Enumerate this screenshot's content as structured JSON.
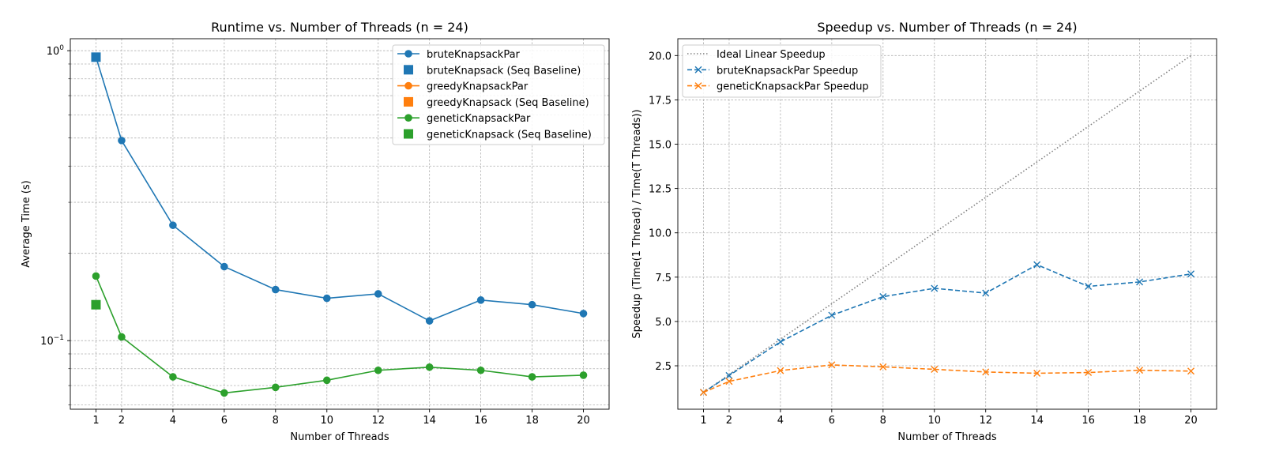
{
  "chart_data": [
    {
      "type": "line",
      "title": "Runtime vs. Number of Threads (n = 24)",
      "xlabel": "Number of Threads",
      "ylabel": "Average Time (s)",
      "yscale": "log",
      "ylim": [
        0.058,
        1.1
      ],
      "xlim": [
        0,
        21
      ],
      "xticks": [
        1,
        2,
        4,
        6,
        8,
        10,
        12,
        14,
        16,
        18,
        20
      ],
      "yticks": [
        {
          "value": 1.0,
          "base": "10",
          "exp": "0"
        },
        {
          "value": 0.1,
          "base": "10",
          "exp": "−1"
        }
      ],
      "grid": true,
      "legend_position": "upper right",
      "series": [
        {
          "name": "bruteKnapsackPar",
          "color": "#1f77b4",
          "marker": "circle",
          "x": [
            1,
            2,
            4,
            6,
            8,
            10,
            12,
            14,
            16,
            18,
            20
          ],
          "values": [
            0.95,
            0.49,
            0.25,
            0.18,
            0.15,
            0.14,
            0.145,
            0.117,
            0.138,
            0.133,
            0.124
          ]
        },
        {
          "name": "bruteKnapsack (Seq Baseline)",
          "color": "#1f77b4",
          "marker": "square",
          "x": [
            1
          ],
          "values": [
            0.95
          ]
        },
        {
          "name": "greedyKnapsackPar",
          "color": "#ff7f0e",
          "marker": "circle",
          "x": [],
          "values": []
        },
        {
          "name": "greedyKnapsack (Seq Baseline)",
          "color": "#ff7f0e",
          "marker": "square",
          "x": [],
          "values": []
        },
        {
          "name": "geneticKnapsackPar",
          "color": "#2ca02c",
          "marker": "circle",
          "x": [
            1,
            2,
            4,
            6,
            8,
            10,
            12,
            14,
            16,
            18,
            20
          ],
          "values": [
            0.167,
            0.103,
            0.075,
            0.066,
            0.069,
            0.073,
            0.079,
            0.081,
            0.079,
            0.075,
            0.076
          ]
        },
        {
          "name": "geneticKnapsack (Seq Baseline)",
          "color": "#2ca02c",
          "marker": "square",
          "x": [
            1
          ],
          "values": [
            0.133
          ]
        }
      ]
    },
    {
      "type": "line",
      "title": "Speedup vs. Number of Threads (n = 24)",
      "xlabel": "Number of Threads",
      "ylabel": "Speedup (Time(1 Thread) / Time(T Threads))",
      "yscale": "linear",
      "ylim": [
        0.05,
        20.95
      ],
      "xlim": [
        0,
        21
      ],
      "xticks": [
        1,
        2,
        4,
        6,
        8,
        10,
        12,
        14,
        16,
        18,
        20
      ],
      "yticks": [
        "2.5",
        "5.0",
        "7.5",
        "10.0",
        "12.5",
        "15.0",
        "17.5",
        "20.0"
      ],
      "grid": true,
      "legend_position": "upper left",
      "series": [
        {
          "name": "Ideal Linear Speedup",
          "color": "#808080",
          "style": "dotted",
          "marker": "none",
          "x": [
            1,
            20
          ],
          "values": [
            1,
            20
          ]
        },
        {
          "name": "bruteKnapsackPar Speedup",
          "color": "#1f77b4",
          "style": "dashed",
          "marker": "x",
          "x": [
            1,
            2,
            4,
            6,
            8,
            10,
            12,
            14,
            16,
            18,
            20
          ],
          "values": [
            1.0,
            1.95,
            3.85,
            5.35,
            6.4,
            6.87,
            6.6,
            8.2,
            6.98,
            7.23,
            7.68
          ]
        },
        {
          "name": "geneticKnapsackPar Speedup",
          "color": "#ff7f0e",
          "style": "dashed",
          "marker": "x",
          "x": [
            1,
            2,
            4,
            6,
            8,
            10,
            12,
            14,
            16,
            18,
            20
          ],
          "values": [
            1.0,
            1.62,
            2.23,
            2.55,
            2.44,
            2.3,
            2.15,
            2.08,
            2.12,
            2.25,
            2.2
          ]
        }
      ]
    }
  ]
}
